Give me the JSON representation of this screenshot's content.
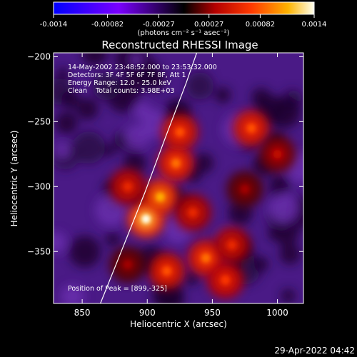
{
  "chart_data": {
    "type": "heatmap",
    "title": "Reconstructed RHESSI Image",
    "xlabel": "Heliocentric X (arcsec)",
    "ylabel": "Heliocentric Y (arcsec)",
    "xlim": [
      828,
      1020
    ],
    "ylim": [
      -390,
      -197
    ],
    "x_ticks": [
      850,
      900,
      950,
      1000
    ],
    "y_ticks": [
      -200,
      -250,
      -300,
      -350
    ],
    "colorbar": {
      "range": [
        -0.0014,
        0.0014
      ],
      "tick_values": [
        -0.0014,
        -0.00082,
        -0.00027,
        0.00027,
        0.00082,
        0.0014
      ],
      "tick_labels": [
        "-0.0014",
        "-0.00082",
        "-0.00027",
        "0.00027",
        "0.00082",
        "0.0014"
      ],
      "unit_label": "(photons cm⁻² s⁻¹ asec⁻²)"
    },
    "annotations": [
      "14-May-2002 23:48:52.000 to 23:53:32.000",
      "Detectors: 3F 4F 5F 6F 7F 8F, Att 1",
      "Energy Range: 12.0 - 25.0 keV",
      "Clean    Total counts: 3.98E+03"
    ],
    "peak_label": "Position of Peak = [899,-325]",
    "peak": {
      "x": 899,
      "y": -325
    },
    "sources": [
      {
        "x": 899,
        "y": -325,
        "intensity": 0.0014
      },
      {
        "x": 910,
        "y": -308,
        "intensity": 0.0011
      },
      {
        "x": 922,
        "y": -282,
        "intensity": 0.0009
      },
      {
        "x": 925,
        "y": -258,
        "intensity": 0.0008
      },
      {
        "x": 945,
        "y": -355,
        "intensity": 0.0009
      },
      {
        "x": 915,
        "y": -365,
        "intensity": 0.0008
      },
      {
        "x": 960,
        "y": -372,
        "intensity": 0.0007
      },
      {
        "x": 885,
        "y": -300,
        "intensity": 0.0006
      },
      {
        "x": 935,
        "y": -320,
        "intensity": 0.0006
      },
      {
        "x": 980,
        "y": -255,
        "intensity": 0.0008
      },
      {
        "x": 1000,
        "y": -275,
        "intensity": 0.0004
      },
      {
        "x": 965,
        "y": -345,
        "intensity": 0.0006
      },
      {
        "x": 885,
        "y": -360,
        "intensity": 0.0003
      },
      {
        "x": 975,
        "y": -302,
        "intensity": 0.0003
      }
    ],
    "limb": [
      {
        "x": 864,
        "y": -390
      },
      {
        "x": 880,
        "y": -350
      },
      {
        "x": 898,
        "y": -305
      },
      {
        "x": 914,
        "y": -262
      },
      {
        "x": 930,
        "y": -220
      },
      {
        "x": 938,
        "y": -197
      }
    ]
  },
  "footer": {
    "date": "29-Apr-2022 04:42"
  }
}
